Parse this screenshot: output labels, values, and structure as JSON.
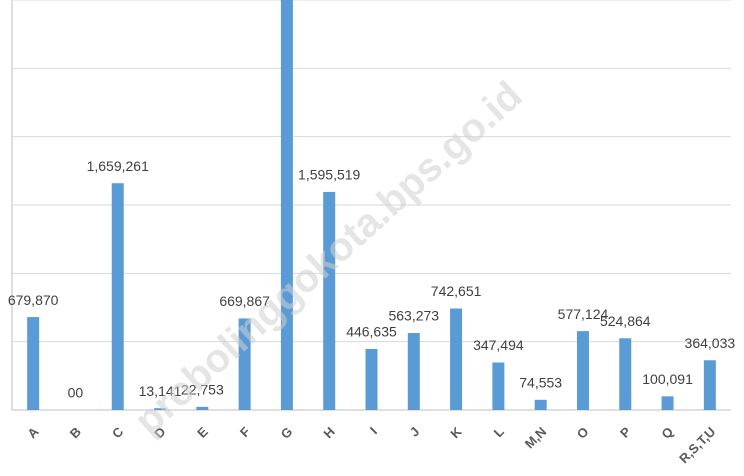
{
  "chart_data": {
    "type": "bar",
    "watermark": "probolinggokota.bps.go.id",
    "categories": [
      "A",
      "B",
      "C",
      "D",
      "E",
      "F",
      "G",
      "H",
      "I",
      "J",
      "K",
      "L",
      "M,N",
      "O",
      "P",
      "Q",
      "R,S,T,U"
    ],
    "values": [
      679870,
      0,
      1659261,
      13141,
      22753,
      669867,
      3000000,
      1595519,
      446635,
      563273,
      742651,
      347494,
      74553,
      577124,
      524864,
      100091,
      364033
    ],
    "value_labels": [
      "679,870",
      "00",
      "1,659,261",
      "13,141",
      "22,753",
      "669,867",
      null,
      "1,595,519",
      "446,635",
      "563,273",
      "742,651",
      "347,494",
      "74,553",
      "577,124",
      "524,864",
      "100,091",
      "364,033"
    ],
    "color": "#5b9bd5",
    "ylim": [
      0,
      3000000
    ],
    "yticks": [
      0,
      500000,
      1000000,
      1500000,
      2000000,
      2500000,
      3000000
    ],
    "grid": true
  }
}
